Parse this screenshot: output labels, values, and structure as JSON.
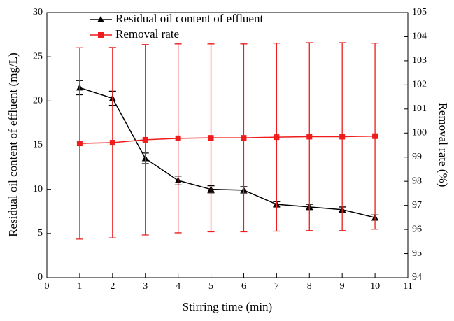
{
  "chart_data": {
    "type": "line",
    "x_label": "Stirring time (min)",
    "y_label": "Residual oil content of effluent (mg/L)",
    "y2_label": "Removal rate (%)",
    "x": [
      1,
      2,
      3,
      4,
      5,
      6,
      7,
      8,
      9,
      10
    ],
    "series": [
      {
        "name": "Residual oil content of effluent",
        "color": "#000000",
        "marker": "triangle",
        "values": [
          21.5,
          20.3,
          13.5,
          11.0,
          10.0,
          9.9,
          8.3,
          8.0,
          7.7,
          6.8
        ],
        "errors": [
          0.8,
          0.8,
          0.6,
          0.5,
          0.4,
          0.4,
          0.3,
          0.3,
          0.3,
          0.3
        ]
      },
      {
        "name": "Removal rate",
        "color": "#ee1c1c",
        "marker": "square",
        "axis": "y2",
        "values": [
          99.57,
          99.6,
          99.72,
          99.78,
          99.8,
          99.8,
          99.83,
          99.85,
          99.85,
          99.87
        ],
        "errors": [
          3.97,
          3.95,
          3.95,
          3.92,
          3.9,
          3.9,
          3.9,
          3.9,
          3.9,
          3.86
        ]
      }
    ],
    "xlim": [
      0,
      11
    ],
    "xticks": [
      0,
      1,
      2,
      3,
      4,
      5,
      6,
      7,
      8,
      9,
      10,
      11
    ],
    "ylim": [
      0,
      30
    ],
    "yticks": [
      0,
      5,
      10,
      15,
      20,
      25,
      30
    ],
    "y2lim": [
      94,
      105
    ],
    "y2ticks": [
      94,
      95,
      96,
      97,
      98,
      99,
      100,
      101,
      102,
      103,
      104,
      105
    ],
    "legend": "upper left"
  }
}
